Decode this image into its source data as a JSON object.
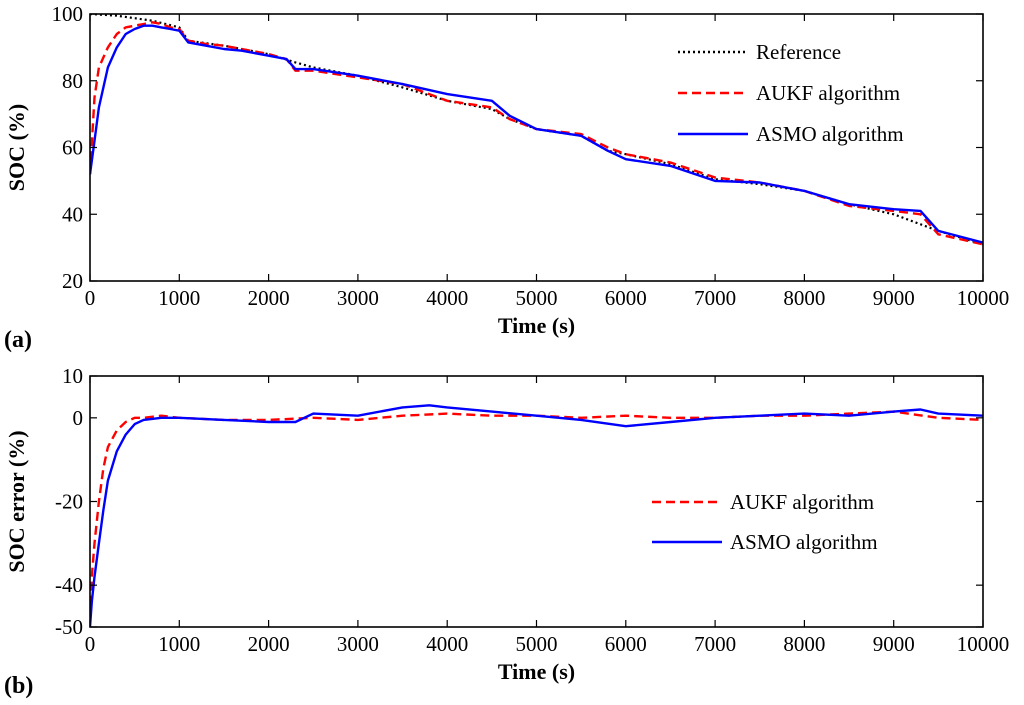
{
  "figure": {
    "panel_a_label": "(a)",
    "panel_b_label": "(b)"
  },
  "colors": {
    "reference": "#000000",
    "aukf": "#ff0000",
    "asmo": "#0000ff"
  },
  "chart_data": [
    {
      "type": "line",
      "title": "",
      "xlabel": "Time (s)",
      "ylabel": "SOC (%)",
      "xlim": [
        0,
        10000
      ],
      "ylim": [
        20,
        100
      ],
      "xticks": [
        0,
        1000,
        2000,
        3000,
        4000,
        5000,
        6000,
        7000,
        8000,
        9000,
        10000
      ],
      "yticks": [
        20,
        40,
        60,
        80,
        100
      ],
      "grid": false,
      "legend_position": "top-right",
      "series": [
        {
          "name": "Reference",
          "style": "dotted",
          "color": "#000000",
          "x": [
            0,
            300,
            700,
            1000,
            1100,
            1500,
            2000,
            2300,
            2500,
            3000,
            3500,
            4000,
            4500,
            4700,
            5000,
            5500,
            5800,
            6000,
            6500,
            7000,
            7500,
            8000,
            8500,
            9000,
            9500,
            10000
          ],
          "y": [
            100,
            99.5,
            98,
            96,
            92,
            90.5,
            88,
            85.5,
            84,
            81.5,
            78,
            74,
            71.5,
            68.5,
            65.5,
            63.5,
            59,
            58,
            55,
            50.5,
            49,
            47,
            43,
            40,
            35,
            31
          ]
        },
        {
          "name": "AUKF algorithm",
          "style": "dashed",
          "color": "#ff0000",
          "x": [
            0,
            50,
            100,
            200,
            300,
            400,
            500,
            600,
            700,
            800,
            900,
            1000,
            1100,
            1300,
            1500,
            1700,
            2000,
            2200,
            2300,
            2500,
            3000,
            3500,
            4000,
            4500,
            4700,
            5000,
            5500,
            5800,
            6000,
            6500,
            7000,
            7500,
            8000,
            8500,
            9000,
            9300,
            9500,
            10000
          ],
          "y": [
            52,
            75,
            84,
            90,
            94,
            96,
            96.5,
            97,
            97.5,
            97,
            96,
            95.5,
            92,
            91,
            90.5,
            89.5,
            88,
            86.5,
            83,
            83,
            81,
            79,
            74,
            72,
            68.5,
            65.5,
            64,
            60,
            58,
            55.5,
            51,
            49.5,
            47,
            42.5,
            41,
            40,
            34,
            31
          ]
        },
        {
          "name": "ASMO algorithm",
          "style": "solid",
          "color": "#0000ff",
          "x": [
            0,
            50,
            100,
            200,
            300,
            400,
            500,
            600,
            700,
            800,
            900,
            1000,
            1100,
            1300,
            1500,
            1700,
            2000,
            2200,
            2300,
            2500,
            3000,
            3500,
            4000,
            4500,
            4700,
            5000,
            5500,
            5800,
            6000,
            6500,
            7000,
            7500,
            8000,
            8500,
            9000,
            9300,
            9500,
            10000
          ],
          "y": [
            52,
            62,
            72,
            84,
            90,
            94,
            95.5,
            96.5,
            96.5,
            96,
            95.5,
            95,
            91.5,
            90.5,
            89.5,
            89,
            87.5,
            86.5,
            83.5,
            83.5,
            81.5,
            79,
            76,
            74,
            69.5,
            65.5,
            63.5,
            59,
            56.5,
            54.5,
            50,
            49.5,
            47,
            43,
            41.5,
            41,
            35,
            31.5
          ]
        }
      ]
    },
    {
      "type": "line",
      "title": "",
      "xlabel": "Time (s)",
      "ylabel": "SOC error (%)",
      "xlim": [
        0,
        10000
      ],
      "ylim": [
        -50,
        10
      ],
      "xticks": [
        0,
        1000,
        2000,
        3000,
        4000,
        5000,
        6000,
        7000,
        8000,
        9000,
        10000
      ],
      "yticks": [
        -50,
        -40,
        -20,
        0,
        10
      ],
      "grid": false,
      "legend_position": "center-right",
      "series": [
        {
          "name": "AUKF algorithm",
          "style": "dashed",
          "color": "#ff0000",
          "x": [
            0,
            20,
            50,
            100,
            150,
            200,
            300,
            400,
            500,
            600,
            800,
            1000,
            1500,
            2000,
            2500,
            3000,
            3500,
            4000,
            4500,
            5000,
            5500,
            6000,
            6500,
            7000,
            7500,
            8000,
            8500,
            9000,
            9500,
            10000
          ],
          "y": [
            -48,
            -38,
            -30,
            -20,
            -12,
            -7,
            -3,
            -1,
            0,
            0,
            0.5,
            0,
            -0.5,
            -0.5,
            0,
            -0.5,
            0.5,
            1,
            0.5,
            0.5,
            0,
            0.5,
            0,
            0,
            0.5,
            0.5,
            1,
            1.5,
            0,
            -0.5
          ]
        },
        {
          "name": "ASMO algorithm",
          "style": "solid",
          "color": "#0000ff",
          "x": [
            0,
            20,
            50,
            100,
            150,
            200,
            300,
            400,
            500,
            600,
            800,
            1000,
            1500,
            2000,
            2300,
            2500,
            3000,
            3500,
            3800,
            4000,
            4500,
            5000,
            5500,
            6000,
            6500,
            7000,
            7500,
            8000,
            8500,
            9000,
            9300,
            9500,
            10000
          ],
          "y": [
            -50,
            -44,
            -38,
            -30,
            -22,
            -15,
            -8,
            -4,
            -1.5,
            -0.5,
            0,
            0,
            -0.5,
            -1,
            -1,
            1,
            0.5,
            2.5,
            3,
            2.5,
            1.5,
            0.5,
            -0.5,
            -2,
            -1,
            0,
            0.5,
            1,
            0.5,
            1.5,
            2,
            1,
            0.5
          ]
        }
      ]
    }
  ]
}
